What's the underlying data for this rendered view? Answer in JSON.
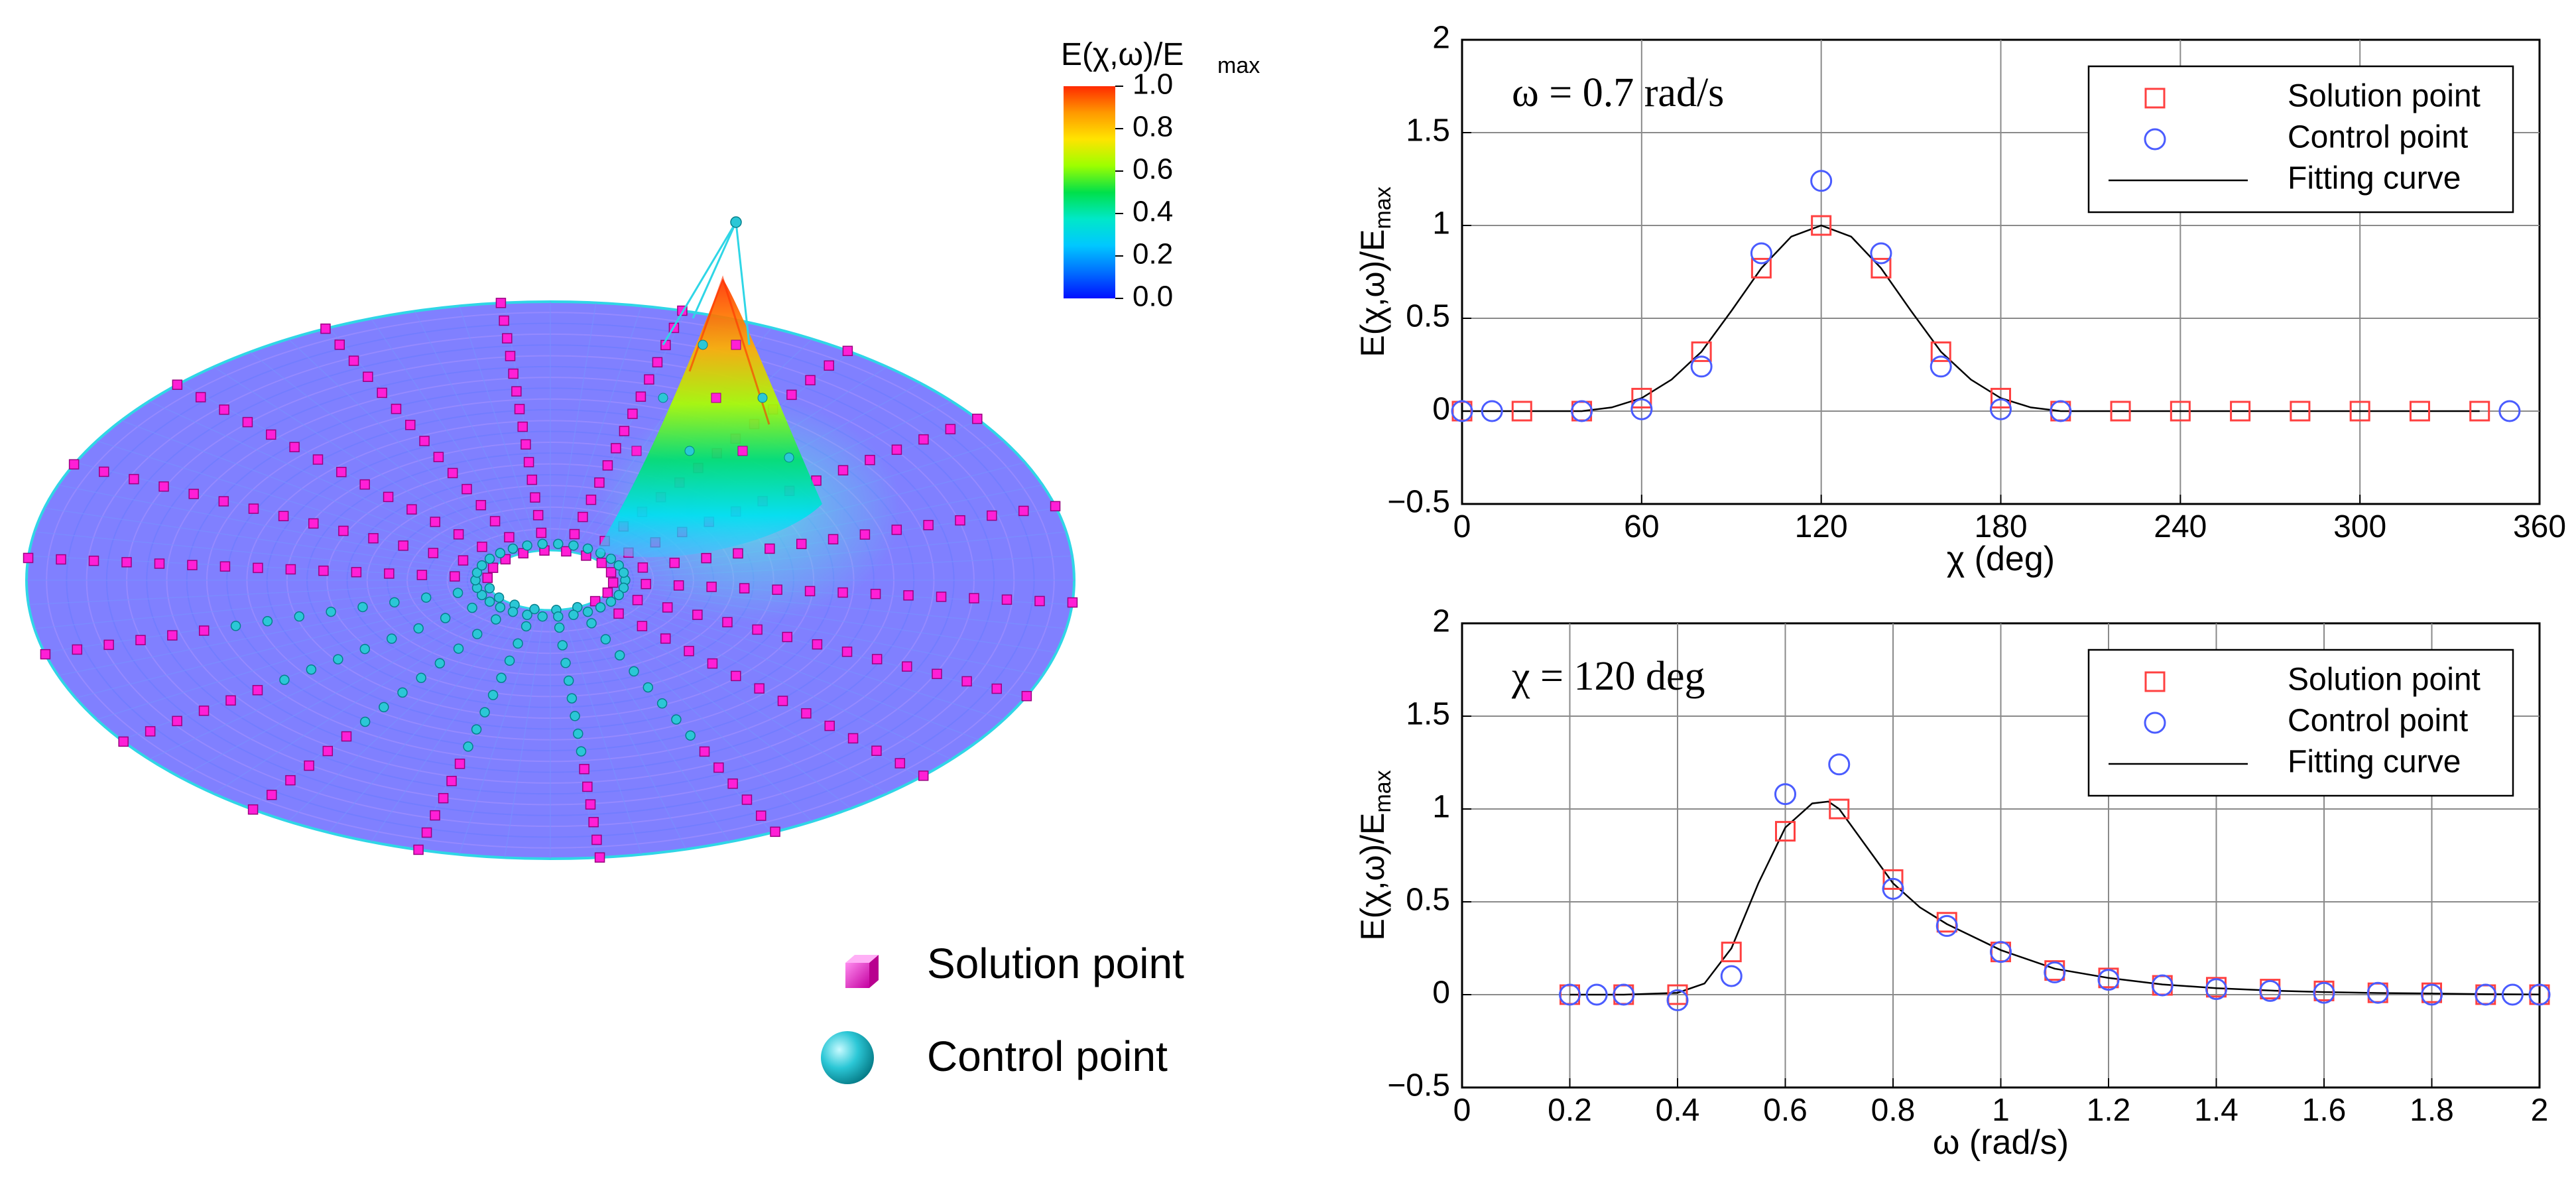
{
  "surface_plot": {
    "colorbar": {
      "title": "E(χ,ω)/E",
      "title_sub": "max",
      "ticks": [
        "1.0",
        "0.8",
        "0.6",
        "0.4",
        "0.2",
        "0.0"
      ],
      "colors": [
        "#ff2a00",
        "#ff9900",
        "#ffe400",
        "#9cff00",
        "#00e04a",
        "#00e8c8",
        "#00c8ff",
        "#0070ff",
        "#0010ff"
      ]
    },
    "legend": [
      {
        "label": "Solution point",
        "color": "#ff1fd6",
        "shape": "cube"
      },
      {
        "label": "Control point",
        "color": "#19c7d6",
        "shape": "sphere"
      }
    ],
    "colors": {
      "surface": "#8080ff",
      "mesh": "#2fd6e6",
      "solution": "#ff1fd6",
      "control": "#2bc7d6"
    }
  },
  "chart_data": [
    {
      "type": "scatter",
      "annotation": "ω = 0.7 rad/s",
      "xlabel": "χ (deg)",
      "ylabel": "E(χ,ω)/E",
      "ylabel_sub": "max",
      "xlim": [
        0,
        360
      ],
      "ylim": [
        -0.5,
        2
      ],
      "xticks": [
        "0",
        "60",
        "120",
        "180",
        "240",
        "300",
        "360"
      ],
      "yticks": [
        "−0.5",
        "0",
        "0.5",
        "1",
        "1.5",
        "2"
      ],
      "legend": [
        "Solution point",
        "Control point",
        "Fitting curve"
      ],
      "series": [
        {
          "name": "Solution point",
          "marker": "square",
          "color": "#ff4040",
          "x": [
            0,
            20,
            40,
            60,
            80,
            100,
            120,
            140,
            160,
            180,
            200,
            220,
            240,
            260,
            280,
            300,
            320,
            340
          ],
          "y": [
            0,
            0,
            0,
            0.07,
            0.32,
            0.77,
            1.0,
            0.77,
            0.32,
            0.07,
            0,
            0,
            0,
            0,
            0,
            0,
            0,
            0
          ]
        },
        {
          "name": "Control point",
          "marker": "circle",
          "color": "#4a5cff",
          "x": [
            0,
            10,
            40,
            60,
            80,
            100,
            120,
            140,
            160,
            180,
            200,
            350
          ],
          "y": [
            0,
            0,
            0,
            0.01,
            0.24,
            0.85,
            1.24,
            0.85,
            0.24,
            0.01,
            0,
            0
          ]
        },
        {
          "name": "Fitting curve",
          "line": true,
          "color": "#000000",
          "x": [
            0,
            20,
            40,
            50,
            60,
            70,
            80,
            90,
            100,
            110,
            120,
            130,
            140,
            150,
            160,
            170,
            180,
            190,
            200,
            220,
            240,
            260,
            280,
            300,
            320,
            340
          ],
          "y": [
            0,
            0,
            0,
            0.02,
            0.07,
            0.17,
            0.32,
            0.54,
            0.77,
            0.94,
            1.0,
            0.94,
            0.77,
            0.54,
            0.32,
            0.17,
            0.07,
            0.02,
            0,
            0,
            0,
            0,
            0,
            0,
            0,
            0
          ]
        }
      ]
    },
    {
      "type": "scatter",
      "annotation": "χ = 120 deg",
      "xlabel": "ω (rad/s)",
      "ylabel": "E(χ,ω)/E",
      "ylabel_sub": "max",
      "xlim": [
        0,
        2
      ],
      "ylim": [
        -0.5,
        2
      ],
      "xticks": [
        "0",
        "0.2",
        "0.4",
        "0.6",
        "0.8",
        "1",
        "1.2",
        "1.4",
        "1.6",
        "1.8",
        "2"
      ],
      "yticks": [
        "−0.5",
        "0",
        "0.5",
        "1",
        "1.5",
        "2"
      ],
      "legend": [
        "Solution point",
        "Control point",
        "Fitting curve"
      ],
      "series": [
        {
          "name": "Solution point",
          "marker": "square",
          "color": "#ff4040",
          "x": [
            0.2,
            0.3,
            0.4,
            0.5,
            0.6,
            0.7,
            0.8,
            0.9,
            1.0,
            1.1,
            1.2,
            1.3,
            1.4,
            1.5,
            1.6,
            1.7,
            1.8,
            1.9,
            2.0
          ],
          "y": [
            0,
            0,
            0,
            0.23,
            0.88,
            1.0,
            0.62,
            0.39,
            0.23,
            0.13,
            0.09,
            0.05,
            0.04,
            0.03,
            0.02,
            0.01,
            0.01,
            0,
            0
          ]
        },
        {
          "name": "Control point",
          "marker": "circle",
          "color": "#4a5cff",
          "x": [
            0.2,
            0.25,
            0.3,
            0.4,
            0.5,
            0.6,
            0.7,
            0.8,
            0.9,
            1.0,
            1.1,
            1.2,
            1.3,
            1.4,
            1.5,
            1.6,
            1.7,
            1.8,
            1.9,
            1.95,
            2.0
          ],
          "y": [
            0,
            0,
            0,
            -0.03,
            0.1,
            1.08,
            1.24,
            0.57,
            0.37,
            0.23,
            0.12,
            0.08,
            0.05,
            0.03,
            0.02,
            0.01,
            0.01,
            0,
            0,
            0,
            0
          ]
        },
        {
          "name": "Fitting curve",
          "line": true,
          "color": "#000000",
          "x": [
            0.2,
            0.3,
            0.4,
            0.45,
            0.5,
            0.55,
            0.6,
            0.65,
            0.68,
            0.7,
            0.75,
            0.8,
            0.85,
            0.9,
            1.0,
            1.1,
            1.2,
            1.3,
            1.4,
            1.5,
            1.6,
            1.7,
            1.8,
            1.9,
            2.0
          ],
          "y": [
            0,
            0,
            0.01,
            0.06,
            0.25,
            0.6,
            0.9,
            1.03,
            1.04,
            1.0,
            0.8,
            0.6,
            0.47,
            0.38,
            0.24,
            0.14,
            0.09,
            0.055,
            0.035,
            0.022,
            0.014,
            0.009,
            0.006,
            0.003,
            0.001
          ]
        }
      ]
    }
  ]
}
